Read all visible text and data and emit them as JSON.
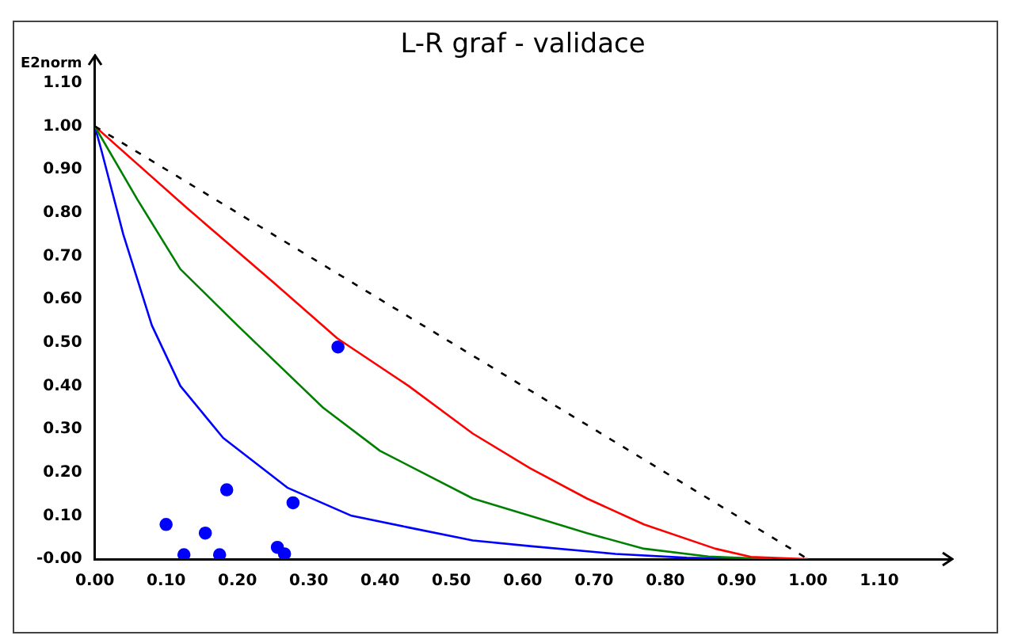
{
  "chart_data": {
    "type": "line",
    "title": "L-R graf - validace",
    "ylabel": "E2norm",
    "xlim": [
      0,
      1.2
    ],
    "ylim": [
      0,
      1.16
    ],
    "xticks": [
      {
        "value": 0,
        "label": "0.00"
      },
      {
        "value": 0.1,
        "label": "0.10"
      },
      {
        "value": 0.2,
        "label": "0.20"
      },
      {
        "value": 0.3,
        "label": "0.30"
      },
      {
        "value": 0.4,
        "label": "0.40"
      },
      {
        "value": 0.5,
        "label": "0.50"
      },
      {
        "value": 0.6,
        "label": "0.60"
      },
      {
        "value": 0.7,
        "label": "0.70"
      },
      {
        "value": 0.8,
        "label": "0.80"
      },
      {
        "value": 0.9,
        "label": "0.90"
      },
      {
        "value": 1,
        "label": "1.00"
      },
      {
        "value": 1.1,
        "label": "1.10"
      }
    ],
    "yticks": [
      {
        "value": 0,
        "label": "-0.00"
      },
      {
        "value": 0.1,
        "label": "0.10"
      },
      {
        "value": 0.2,
        "label": "0.20"
      },
      {
        "value": 0.3,
        "label": "0.30"
      },
      {
        "value": 0.4,
        "label": "0.40"
      },
      {
        "value": 0.5,
        "label": "0.50"
      },
      {
        "value": 0.6,
        "label": "0.60"
      },
      {
        "value": 0.7,
        "label": "0.70"
      },
      {
        "value": 0.8,
        "label": "0.80"
      },
      {
        "value": 0.9,
        "label": "0.90"
      },
      {
        "value": 1,
        "label": "1.00"
      },
      {
        "value": 1.1,
        "label": "1.10"
      }
    ],
    "grid": false,
    "legend": false,
    "series": [
      {
        "color": "#000000",
        "line_style": "dashed",
        "marker": "none",
        "x": [
          0,
          1
        ],
        "values": [
          1,
          0
        ]
      },
      {
        "color": "#ff0000",
        "line_style": "solid",
        "marker": "none",
        "x": [
          0,
          0.13,
          0.25,
          0.34,
          0.44,
          0.53,
          0.61,
          0.69,
          0.77,
          0.87,
          0.92,
          1.0
        ],
        "values": [
          1,
          0.81,
          0.64,
          0.51,
          0.4,
          0.29,
          0.21,
          0.14,
          0.08,
          0.024,
          0.005,
          0
        ]
      },
      {
        "color": "#008000",
        "line_style": "solid",
        "marker": "none",
        "x": [
          0,
          0.06,
          0.12,
          0.2,
          0.32,
          0.4,
          0.53,
          0.61,
          0.69,
          0.77,
          0.86,
          0.95
        ],
        "values": [
          1,
          0.83,
          0.67,
          0.54,
          0.35,
          0.25,
          0.14,
          0.1,
          0.06,
          0.024,
          0.006,
          0
        ]
      },
      {
        "color": "#0000ff",
        "line_style": "solid",
        "marker": "none",
        "x": [
          0,
          0.01,
          0.04,
          0.08,
          0.12,
          0.18,
          0.27,
          0.36,
          0.44,
          0.53,
          0.61,
          0.73,
          0.83,
          0.92
        ],
        "values": [
          1,
          0.94,
          0.75,
          0.54,
          0.4,
          0.28,
          0.165,
          0.1,
          0.073,
          0.043,
          0.03,
          0.012,
          0.003,
          0
        ]
      },
      {
        "type": "scatter",
        "color": "#0000ff",
        "marker": "circle",
        "x": [
          0.1,
          0.125,
          0.155,
          0.175,
          0.185,
          0.256,
          0.266,
          0.278,
          0.341
        ],
        "values": [
          0.08,
          0.01,
          0.06,
          0.01,
          0.16,
          0.027,
          0.012,
          0.13,
          0.49
        ]
      }
    ]
  }
}
